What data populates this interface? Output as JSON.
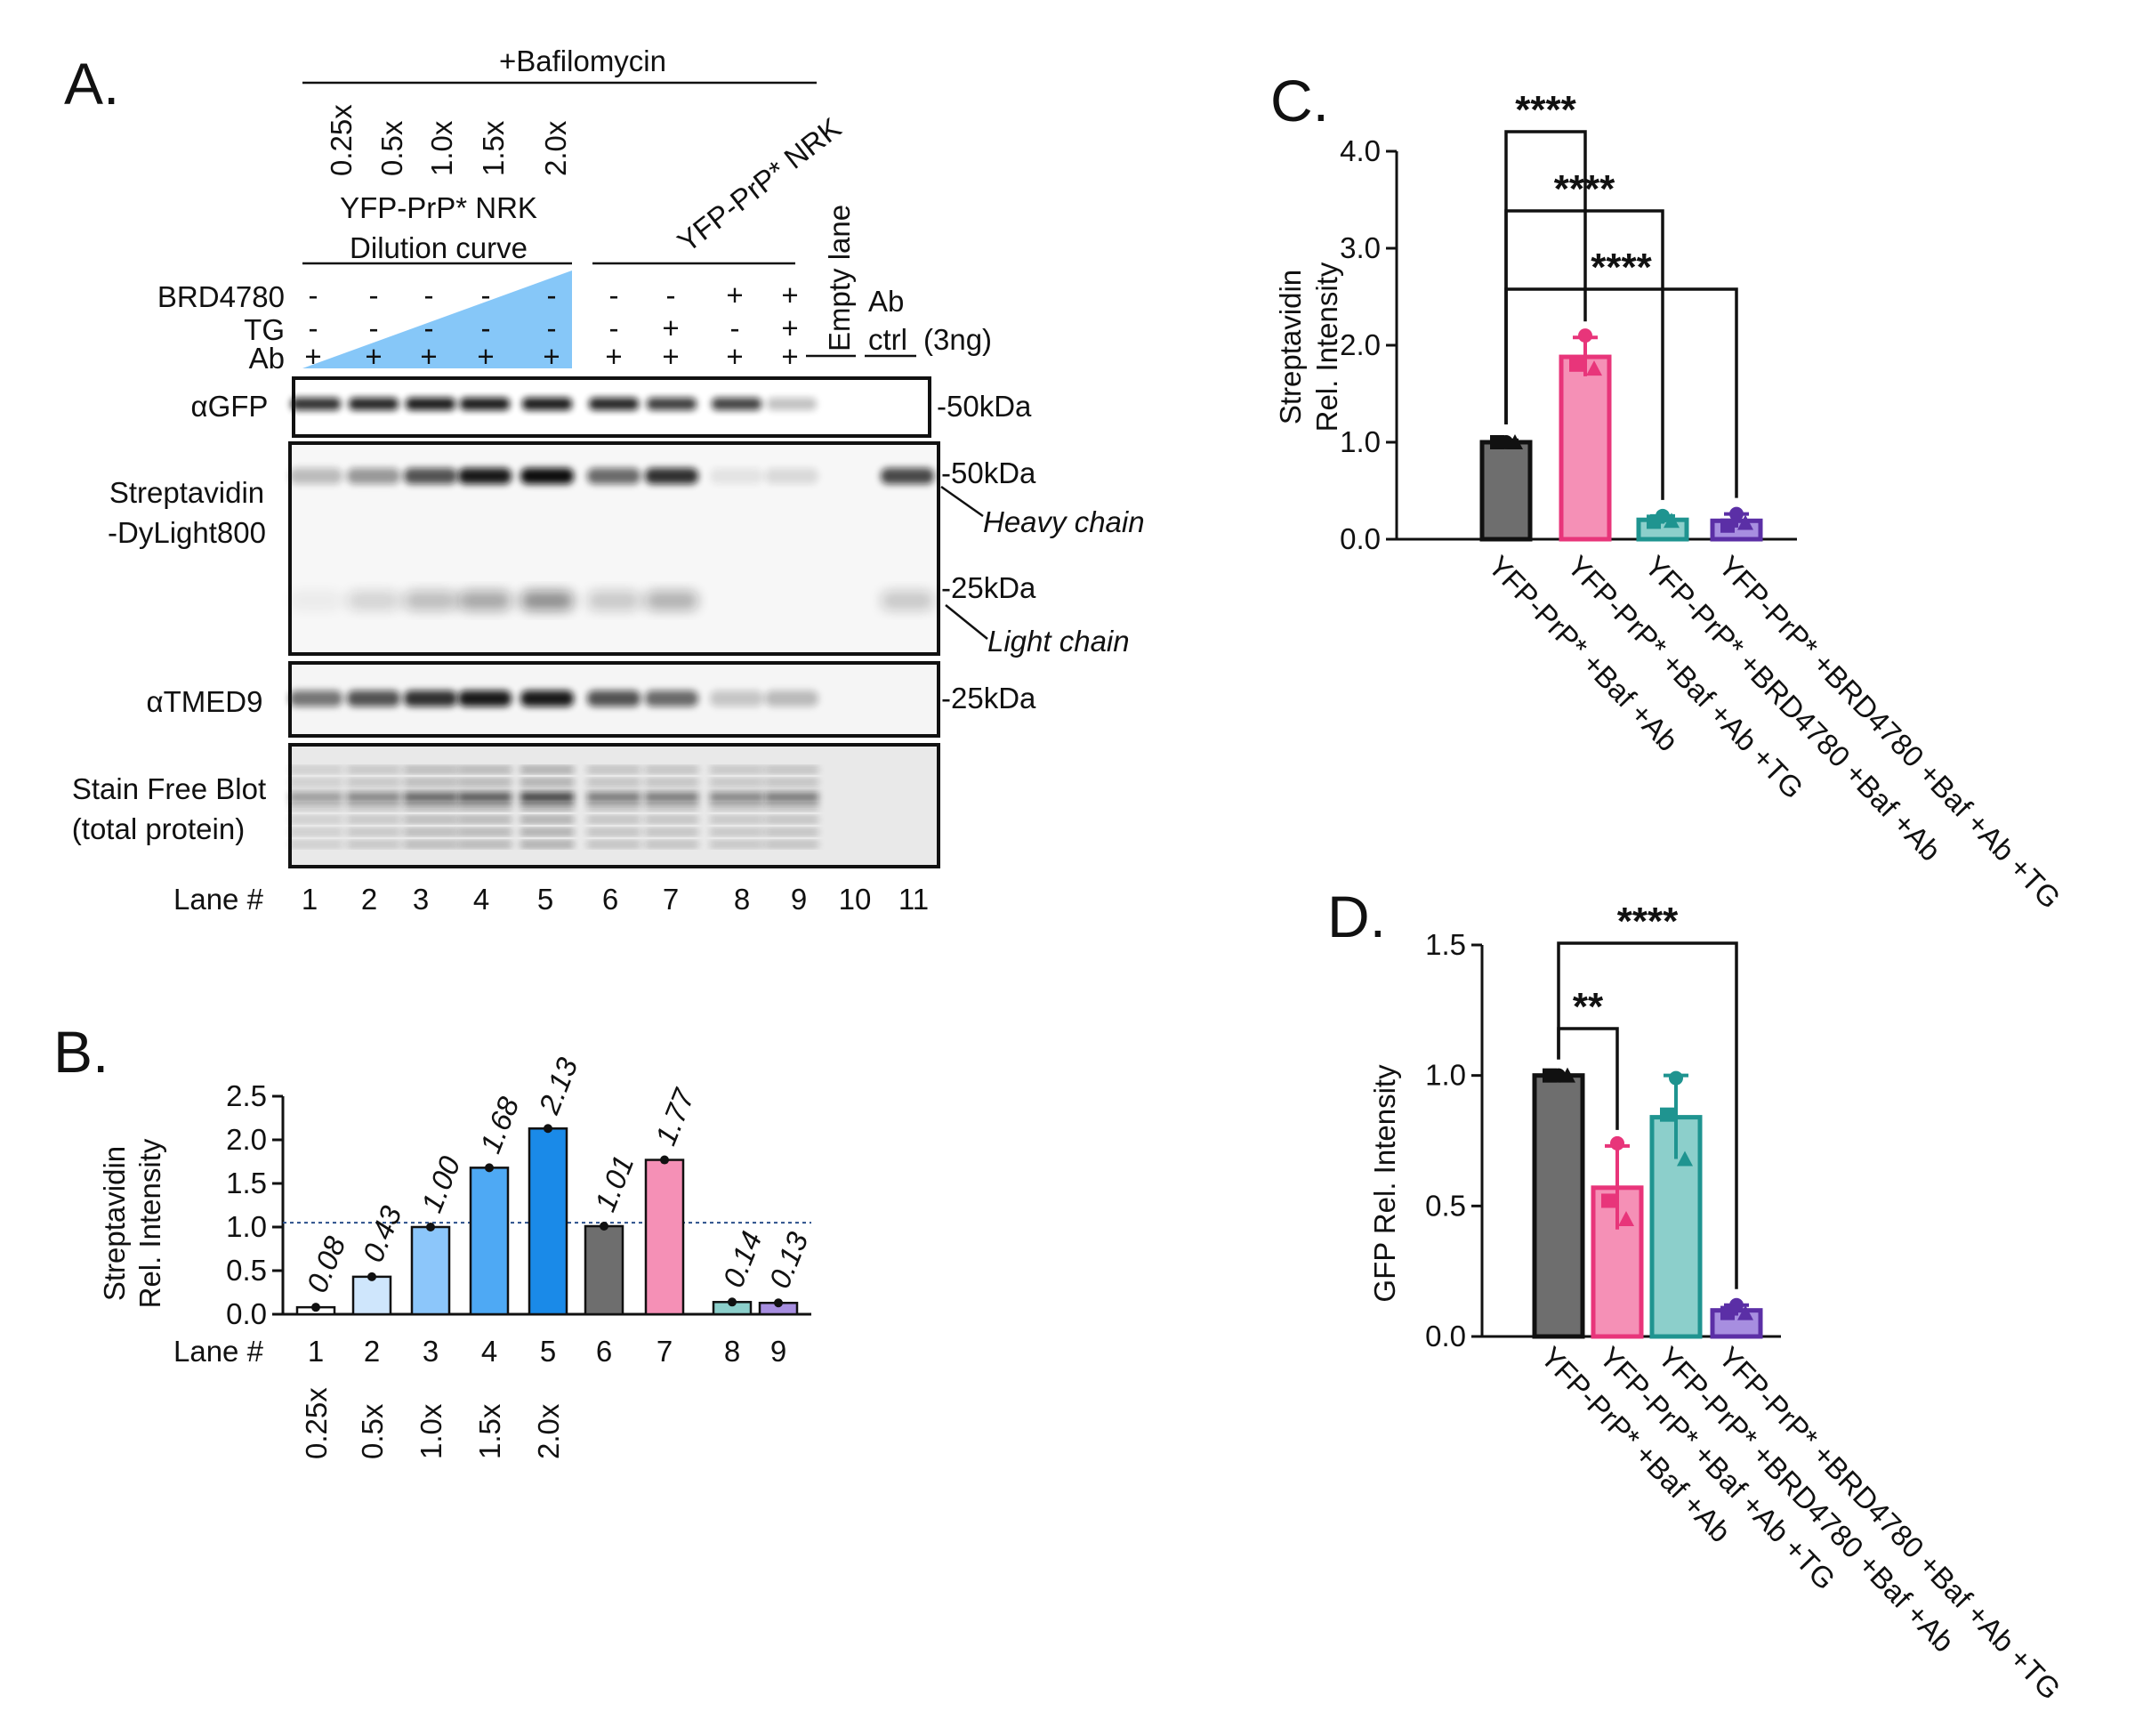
{
  "panelA": {
    "letter": "A.",
    "bafilomycin": "+Bafilomycin",
    "dilution_labels": [
      "0.25x",
      "0.5x",
      "1.0x",
      "1.5x",
      "2.0x"
    ],
    "yfp_nrk_label": "YFP-PrP* NRK",
    "dilution_line1": "YFP-PrP* NRK",
    "dilution_line2": "Dilution curve",
    "row_labels": {
      "brd": "BRD4780",
      "tg": "TG",
      "ab": "Ab"
    },
    "rows": {
      "brd": [
        "-",
        "-",
        "-",
        "-",
        "-",
        "-",
        "-",
        "+",
        "+"
      ],
      "tg": [
        "-",
        "-",
        "-",
        "-",
        "-",
        "-",
        "+",
        "-",
        "+"
      ],
      "ab": [
        "+",
        "+",
        "+",
        "+",
        "+",
        "+",
        "+",
        "+",
        "+"
      ]
    },
    "empty_lane": "Empty lane",
    "ab_ctrl_line1": "Ab",
    "ab_ctrl_line2": "ctrl",
    "ab_ctrl_amount": "(3ng)",
    "blot_labels": {
      "gfp": "αGFP",
      "strep1": "Streptavidin",
      "strep2": "-DyLight800",
      "tmed9": "αTMED9",
      "stain1": "Stain Free Blot",
      "stain2": "(total protein)"
    },
    "markers": {
      "gfp_50": "-50kDa",
      "strep_50": "-50kDa",
      "heavy": "Heavy chain",
      "strep_25": "-25kDa",
      "light": "Light chain",
      "tmed9_25": "-25kDa"
    },
    "lane_title": "Lane #",
    "lanes": [
      "1",
      "2",
      "3",
      "4",
      "5",
      "6",
      "7",
      "8",
      "9",
      "10",
      "11"
    ]
  },
  "colors": {
    "black": "#111111",
    "grey": "#6e6e6e",
    "pink": "#f590b6",
    "pink_dark": "#e8357a",
    "teal": "#8ccfcb",
    "teal_dark": "#1f9490",
    "purple": "#a78ee0",
    "purple_dark": "#5b2fa6",
    "blue_tri": "#86c7f8",
    "dot_blue": "#2a4f8a"
  },
  "chart_data": [
    {
      "id": "B",
      "letter": "B.",
      "type": "bar",
      "ylabel_line1": "Streptavidin",
      "ylabel_line2": "Rel. Intensity",
      "xlabel": "Lane #",
      "ylim": [
        0,
        2.5
      ],
      "yticks": [
        "0.0",
        "0.5",
        "1.0",
        "1.5",
        "2.0",
        "2.5"
      ],
      "categories": [
        "1",
        "2",
        "3",
        "4",
        "5",
        "6",
        "7",
        "8",
        "9"
      ],
      "values": [
        0.08,
        0.43,
        1.0,
        1.68,
        2.13,
        1.01,
        1.77,
        0.14,
        0.13
      ],
      "value_labels": [
        "0.08",
        "0.43",
        "1.00",
        "1.68",
        "2.13",
        "1.01",
        "1.77",
        "0.14",
        "0.13"
      ],
      "fills": [
        "#ffffff",
        "#cfe6fc",
        "#8cc6fa",
        "#4ea9f4",
        "#1a8ae8",
        "#6e6e6e",
        "#f590b6",
        "#8ccfcb",
        "#a78ee0"
      ],
      "dilution_labels": [
        "0.25x",
        "0.5x",
        "1.0x",
        "1.5x",
        "2.0x"
      ],
      "reference_line": 1.05
    },
    {
      "id": "C",
      "letter": "C.",
      "type": "bar",
      "ylabel_line1": "Streptavidin",
      "ylabel_line2": "Rel. Intensity",
      "ylim": [
        0,
        4.0
      ],
      "yticks": [
        "0.0",
        "1.0",
        "2.0",
        "3.0",
        "4.0"
      ],
      "categories": [
        "YFP-PrP* +Baf +Ab",
        "YFP-PrP* +Baf +Ab +TG",
        "YFP-PrP* +BRD4780 +Baf +Ab",
        "YFP-PrP* +BRD4780 +Baf +Ab +TG"
      ],
      "values": [
        1.0,
        1.88,
        0.2,
        0.19
      ],
      "errors": [
        0.02,
        0.2,
        0.04,
        0.07
      ],
      "points": [
        [
          1.0,
          1.0,
          1.0
        ],
        [
          2.1,
          1.8,
          1.76
        ],
        [
          0.24,
          0.18,
          0.19
        ],
        [
          0.26,
          0.14,
          0.17
        ]
      ],
      "fills": [
        "#6e6e6e",
        "#f590b6",
        "#8ccfcb",
        "#a78ee0"
      ],
      "edges": [
        "#111111",
        "#e8357a",
        "#1f9490",
        "#5b2fa6"
      ],
      "significance": [
        {
          "label": "****",
          "from": 0,
          "to": 1
        },
        {
          "label": "****",
          "from": 0,
          "to": 2
        },
        {
          "label": "****",
          "from": 0,
          "to": 3
        }
      ]
    },
    {
      "id": "D",
      "letter": "D.",
      "type": "bar",
      "ylabel_line1": "GFP Rel. Intensity",
      "ylim": [
        0,
        1.5
      ],
      "yticks": [
        "0.0",
        "0.5",
        "1.0",
        "1.5"
      ],
      "categories": [
        "YFP-PrP* +Baf +Ab",
        "YFP-PrP* +Baf +Ab +TG",
        "YFP-PrP* +BRD4780 +Baf +Ab",
        "YFP-PrP* +BRD4780 +Baf +Ab +TG"
      ],
      "values": [
        1.0,
        0.57,
        0.84,
        0.1
      ],
      "errors": [
        0.0,
        0.16,
        0.16,
        0.02
      ],
      "points": [
        [
          1.0,
          1.0,
          1.0
        ],
        [
          0.74,
          0.52,
          0.45
        ],
        [
          0.99,
          0.85,
          0.68
        ],
        [
          0.12,
          0.09,
          0.09
        ]
      ],
      "fills": [
        "#6e6e6e",
        "#f590b6",
        "#8ccfcb",
        "#a78ee0"
      ],
      "edges": [
        "#111111",
        "#e8357a",
        "#1f9490",
        "#5b2fa6"
      ],
      "significance": [
        {
          "label": "**",
          "from": 0,
          "to": 1
        },
        {
          "label": "****",
          "from": 0,
          "to": 3
        }
      ]
    }
  ]
}
